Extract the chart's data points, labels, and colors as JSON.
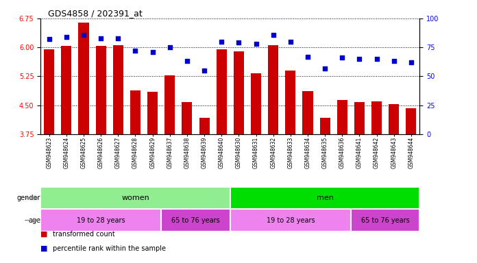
{
  "title": "GDS4858 / 202391_at",
  "samples": [
    "GSM948623",
    "GSM948624",
    "GSM948625",
    "GSM948626",
    "GSM948627",
    "GSM948628",
    "GSM948629",
    "GSM948637",
    "GSM948638",
    "GSM948639",
    "GSM948640",
    "GSM948630",
    "GSM948631",
    "GSM948632",
    "GSM948633",
    "GSM948634",
    "GSM948635",
    "GSM948636",
    "GSM948641",
    "GSM948642",
    "GSM948643",
    "GSM948644"
  ],
  "bar_values": [
    5.95,
    6.03,
    6.65,
    6.03,
    6.05,
    4.88,
    4.85,
    5.28,
    4.58,
    4.17,
    5.95,
    5.9,
    5.32,
    6.05,
    5.4,
    4.87,
    4.17,
    4.63,
    4.58,
    4.6,
    4.52,
    4.42
  ],
  "percentile_values": [
    82,
    84,
    86,
    83,
    83,
    72,
    71,
    75,
    63,
    55,
    80,
    79,
    78,
    86,
    80,
    67,
    57,
    66,
    65,
    65,
    63,
    62
  ],
  "ylim_left": [
    3.75,
    6.75
  ],
  "ylim_right": [
    0,
    100
  ],
  "yticks_left": [
    3.75,
    4.5,
    5.25,
    6.0,
    6.75
  ],
  "yticks_right": [
    0,
    25,
    50,
    75,
    100
  ],
  "bar_color": "#CC0000",
  "dot_color": "#0000CC",
  "background_color": "#ffffff",
  "gender_row": {
    "label": "gender",
    "groups": [
      {
        "text": "women",
        "start": 0,
        "end": 10,
        "color": "#90EE90"
      },
      {
        "text": "men",
        "start": 11,
        "end": 21,
        "color": "#00DD00"
      }
    ]
  },
  "age_row": {
    "label": "age",
    "groups": [
      {
        "text": "19 to 28 years",
        "start": 0,
        "end": 6,
        "color": "#EE82EE"
      },
      {
        "text": "65 to 76 years",
        "start": 7,
        "end": 10,
        "color": "#CC44CC"
      },
      {
        "text": "19 to 28 years",
        "start": 11,
        "end": 17,
        "color": "#EE82EE"
      },
      {
        "text": "65 to 76 years",
        "start": 18,
        "end": 21,
        "color": "#CC44CC"
      }
    ]
  },
  "legend": [
    {
      "label": "transformed count",
      "color": "#CC0000"
    },
    {
      "label": "percentile rank within the sample",
      "color": "#0000CC"
    }
  ]
}
